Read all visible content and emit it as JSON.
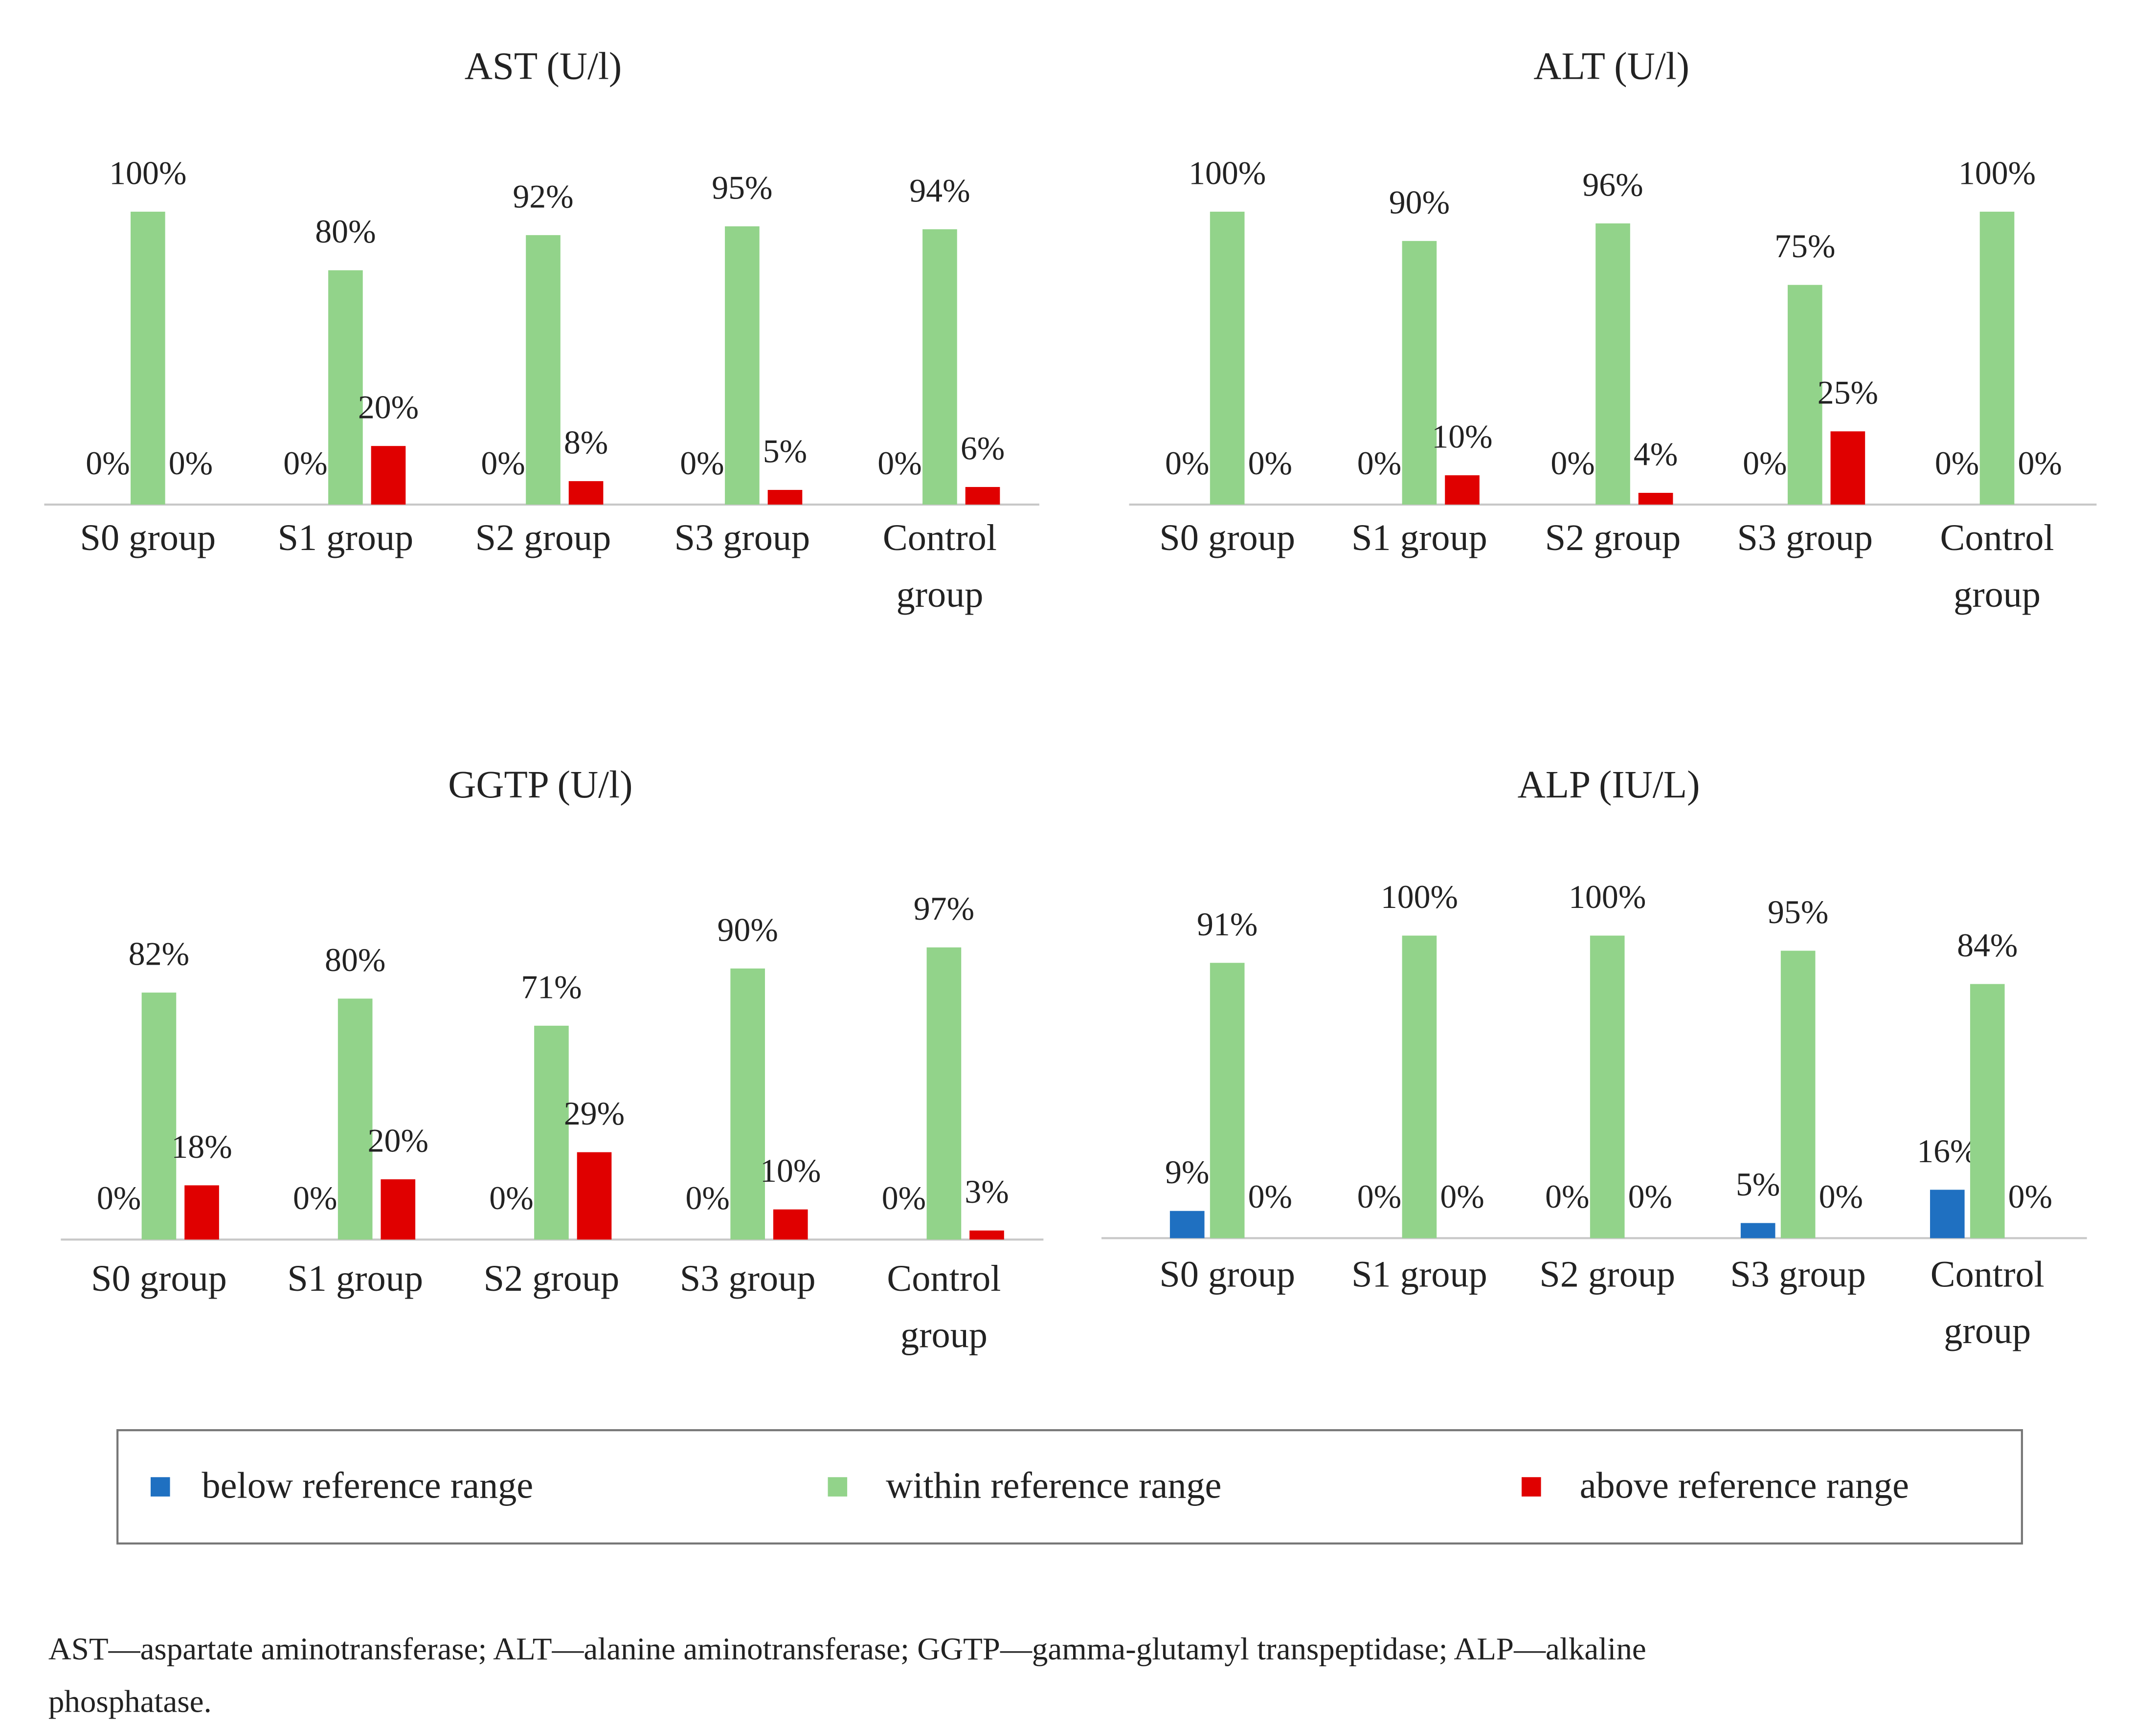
{
  "chart_data": [
    {
      "type": "bar",
      "title": "AST (U/l)",
      "categories": [
        "S0 group",
        "S1 group",
        "S2 group",
        "S3 group",
        "Control group"
      ],
      "series": [
        {
          "color": "#1f70c1",
          "values": [
            0,
            0,
            0,
            0,
            0
          ],
          "value_labels": [
            "0%",
            "0%",
            "0%",
            "0%",
            "0%"
          ]
        },
        {
          "color": "#92d38a",
          "values": [
            100,
            80,
            92,
            95,
            94
          ],
          "value_labels": [
            "100%",
            "80%",
            "92%",
            "95%",
            "94%"
          ]
        },
        {
          "color": "#e00000",
          "values": [
            0,
            20,
            8,
            5,
            6
          ],
          "value_labels": [
            "0%",
            "20%",
            "8%",
            "5%",
            "6%"
          ]
        }
      ]
    },
    {
      "type": "bar",
      "title": "ALT (U/l)",
      "categories": [
        "S0 group",
        "S1 group",
        "S2 group",
        "S3 group",
        "Control group"
      ],
      "series": [
        {
          "color": "#1f70c1",
          "values": [
            0,
            0,
            0,
            0,
            0
          ],
          "value_labels": [
            "0%",
            "0%",
            "0%",
            "0%",
            "0%"
          ]
        },
        {
          "color": "#92d38a",
          "values": [
            100,
            90,
            96,
            75,
            100
          ],
          "value_labels": [
            "100%",
            "90%",
            "96%",
            "75%",
            "100%"
          ]
        },
        {
          "color": "#e00000",
          "values": [
            0,
            10,
            4,
            25,
            0
          ],
          "value_labels": [
            "0%",
            "10%",
            "4%",
            "25%",
            "0%"
          ]
        }
      ]
    },
    {
      "type": "bar",
      "title": "GGTP (U/l)",
      "categories": [
        "S0 group",
        "S1 group",
        "S2 group",
        "S3 group",
        "Control group"
      ],
      "series": [
        {
          "color": "#1f70c1",
          "values": [
            0,
            0,
            0,
            0,
            0
          ],
          "value_labels": [
            "0%",
            "0%",
            "0%",
            "0%",
            "0%"
          ]
        },
        {
          "color": "#92d38a",
          "values": [
            82,
            80,
            71,
            90,
            97
          ],
          "value_labels": [
            "82%",
            "80%",
            "71%",
            "90%",
            "97%"
          ]
        },
        {
          "color": "#e00000",
          "values": [
            18,
            20,
            29,
            10,
            3
          ],
          "value_labels": [
            "18%",
            "20%",
            "29%",
            "10%",
            "3%"
          ]
        }
      ]
    },
    {
      "type": "bar",
      "title": "ALP (IU/L)",
      "categories": [
        "S0 group",
        "S1 group",
        "S2 group",
        "S3 group",
        "Control group"
      ],
      "series": [
        {
          "color": "#1f70c1",
          "values": [
            9,
            0,
            0,
            5,
            16
          ],
          "value_labels": [
            "9%",
            "0%",
            "0%",
            "5%",
            "16%"
          ]
        },
        {
          "color": "#92d38a",
          "values": [
            91,
            100,
            100,
            95,
            84
          ],
          "value_labels": [
            "91%",
            "100%",
            "100%",
            "95%",
            "84%"
          ]
        },
        {
          "color": "#e00000",
          "values": [
            0,
            0,
            0,
            0,
            0
          ],
          "value_labels": [
            "0%",
            "0%",
            "0%",
            "0%",
            "0%"
          ]
        }
      ]
    }
  ],
  "legend": {
    "items": [
      {
        "name": "below reference range",
        "color": "#1f70c1"
      },
      {
        "name": "within reference range",
        "color": "#92d38a"
      },
      {
        "name": "above reference range",
        "color": "#e00000"
      }
    ]
  },
  "caption": {
    "lines": [
      "AST—aspartate aminotransferase; ALT—alanine aminotransferase; GGTP—gamma-glutamyl transpeptidase; ALP—alkaline",
      "phosphatase."
    ]
  }
}
